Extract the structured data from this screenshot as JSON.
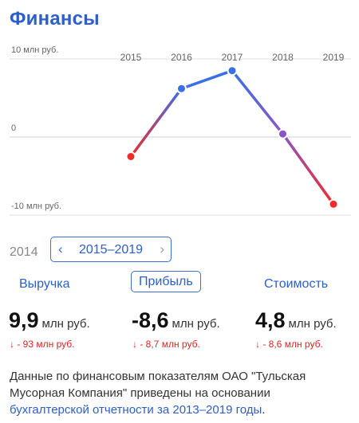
{
  "header": {
    "title": "Финансы"
  },
  "chart_data": {
    "type": "line",
    "x": [
      "2015",
      "2016",
      "2017",
      "2018",
      "2019"
    ],
    "values": [
      -2.5,
      6.2,
      8.5,
      0.4,
      -8.6
    ],
    "y_ticks": [
      {
        "value": 10,
        "label": "10 млн руб."
      },
      {
        "value": 0,
        "label": "0"
      },
      {
        "value": -10,
        "label": "-10 млн руб."
      }
    ],
    "ylim": [
      -11,
      12
    ],
    "grid": true,
    "colors": {
      "positive": "#3b6fe8",
      "negative": "#ef2b2b",
      "grid": "#e0e0e0",
      "zero": "#cfcfcf"
    }
  },
  "periods": {
    "prev": "2014",
    "current": "2015–2019",
    "left_icon": "chevron-left-icon",
    "right_icon": "chevron-right-icon"
  },
  "metrics": [
    {
      "tab": "Выручка",
      "value": "9,9",
      "unit": "млн руб.",
      "delta": "- 93 млн руб.",
      "selected": false
    },
    {
      "tab": "Прибыль",
      "value": "-8,6",
      "unit": "млн руб.",
      "delta": "- 8,7 млн руб.",
      "selected": true
    },
    {
      "tab": "Стоимость",
      "value": "4,8",
      "unit": "млн руб.",
      "delta": "- 8,6 млн руб.",
      "selected": false
    }
  ],
  "note": {
    "text": "Данные по финансовым показателям ОАО \"Тульская Мусорная Компания\" приведены на основании",
    "link": "бухгалтерской отчетности за 2013–2019 годы",
    "end": "."
  }
}
